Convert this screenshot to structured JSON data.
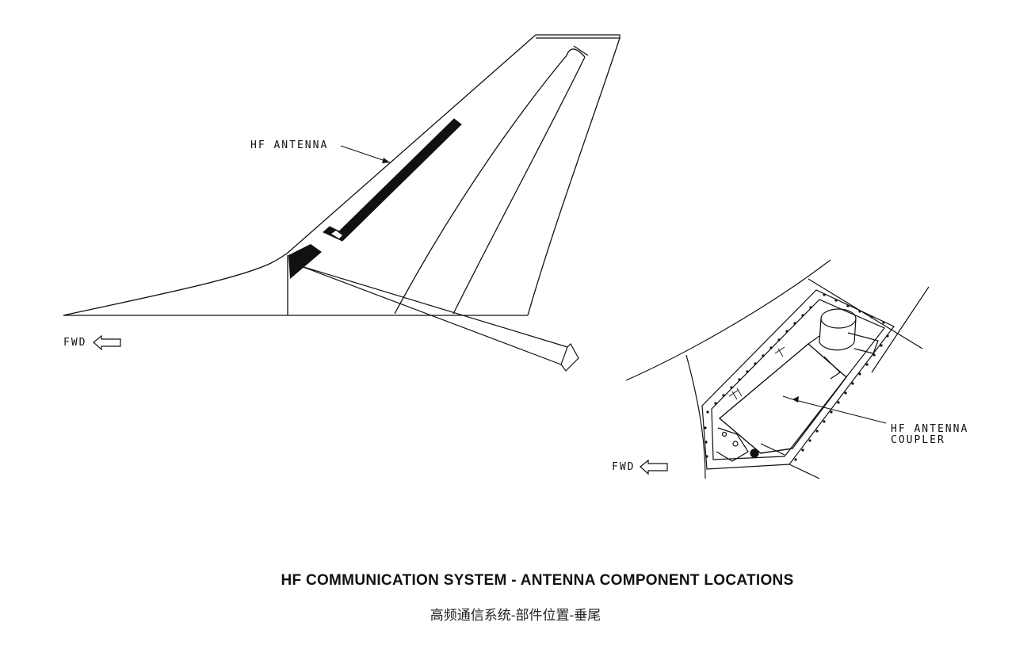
{
  "labels": {
    "hf_antenna": "HF ANTENNA",
    "fwd_left": "FWD",
    "fwd_right": "FWD",
    "coupler_line1": "HF ANTENNA",
    "coupler_line2": "COUPLER"
  },
  "caption": {
    "title": "HF COMMUNICATION SYSTEM - ANTENNA COMPONENT LOCATIONS",
    "subtitle": "高频通信系统-部件位置-垂尾"
  },
  "icons": [
    "fwd-arrow-icon",
    "leader-arrow-icon"
  ],
  "colors": {
    "ink": "#111111",
    "background": "#ffffff"
  }
}
